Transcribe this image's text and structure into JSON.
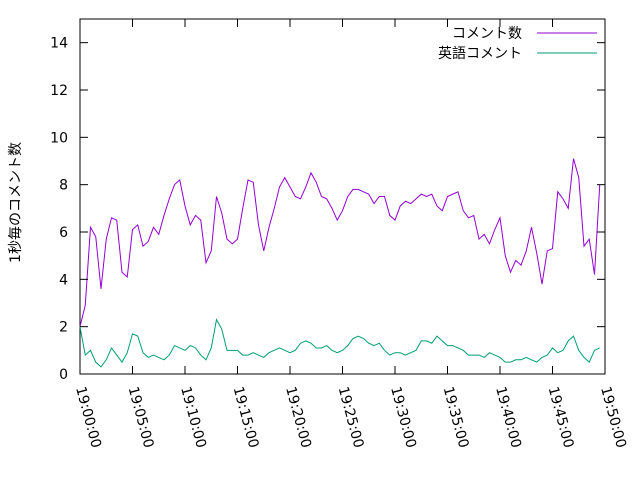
{
  "chart_data": {
    "type": "line",
    "title": "",
    "xlabel": "",
    "ylabel": "1秒毎のコメント数",
    "ylim": [
      0,
      15
    ],
    "yticks": [
      0,
      2,
      4,
      6,
      8,
      10,
      12,
      14
    ],
    "xlim": [
      "19:00:00",
      "19:50:00"
    ],
    "xticks": [
      "19:00:00",
      "19:05:00",
      "19:10:00",
      "19:15:00",
      "19:20:00",
      "19:25:00",
      "19:30:00",
      "19:35:00",
      "19:40:00",
      "19:45:00",
      "19:50:00"
    ],
    "grid": false,
    "legend_position": "top-right",
    "x_step_seconds": 30,
    "series": [
      {
        "name": "コメント数",
        "color": "#9400d3",
        "values": [
          2.0,
          2.9,
          6.2,
          5.8,
          3.6,
          5.7,
          6.6,
          6.5,
          4.3,
          4.1,
          6.1,
          6.3,
          5.4,
          5.6,
          6.2,
          5.9,
          6.7,
          7.4,
          8.0,
          8.2,
          7.1,
          6.3,
          6.7,
          6.5,
          4.7,
          5.2,
          7.5,
          6.8,
          5.7,
          5.5,
          5.7,
          7.0,
          8.2,
          8.1,
          6.3,
          5.2,
          6.2,
          7.0,
          7.9,
          8.3,
          7.9,
          7.5,
          7.4,
          7.9,
          8.5,
          8.1,
          7.5,
          7.4,
          7.0,
          6.5,
          6.9,
          7.5,
          7.8,
          7.8,
          7.7,
          7.6,
          7.2,
          7.5,
          7.5,
          6.7,
          6.5,
          7.1,
          7.3,
          7.2,
          7.4,
          7.6,
          7.5,
          7.6,
          7.1,
          6.9,
          7.5,
          7.6,
          7.7,
          6.9,
          6.6,
          6.7,
          5.7,
          5.9,
          5.5,
          6.1,
          6.6,
          5.0,
          4.3,
          4.8,
          4.6,
          5.2,
          6.2,
          5.1,
          3.8,
          5.2,
          5.3,
          7.7,
          7.4,
          7.0,
          9.1,
          8.3,
          5.4,
          5.7,
          4.2,
          8.0
        ]
      },
      {
        "name": "英語コメント",
        "color": "#009e73",
        "values": [
          2.0,
          0.8,
          1.0,
          0.5,
          0.3,
          0.6,
          1.1,
          0.8,
          0.5,
          0.9,
          1.7,
          1.6,
          0.9,
          0.7,
          0.8,
          0.7,
          0.6,
          0.8,
          1.2,
          1.1,
          1.0,
          1.2,
          1.1,
          0.8,
          0.6,
          1.1,
          2.3,
          1.9,
          1.0,
          1.0,
          1.0,
          0.8,
          0.8,
          0.9,
          0.8,
          0.7,
          0.9,
          1.0,
          1.1,
          1.0,
          0.9,
          1.0,
          1.3,
          1.4,
          1.3,
          1.1,
          1.1,
          1.2,
          1.0,
          0.9,
          1.0,
          1.2,
          1.5,
          1.6,
          1.5,
          1.3,
          1.2,
          1.3,
          1.0,
          0.8,
          0.9,
          0.9,
          0.8,
          0.9,
          1.0,
          1.4,
          1.4,
          1.3,
          1.6,
          1.4,
          1.2,
          1.2,
          1.1,
          1.0,
          0.8,
          0.8,
          0.8,
          0.7,
          0.9,
          0.8,
          0.7,
          0.5,
          0.5,
          0.6,
          0.6,
          0.7,
          0.6,
          0.5,
          0.7,
          0.8,
          1.1,
          0.9,
          1.0,
          1.4,
          1.6,
          1.0,
          0.7,
          0.5,
          1.0,
          1.1
        ]
      }
    ]
  }
}
